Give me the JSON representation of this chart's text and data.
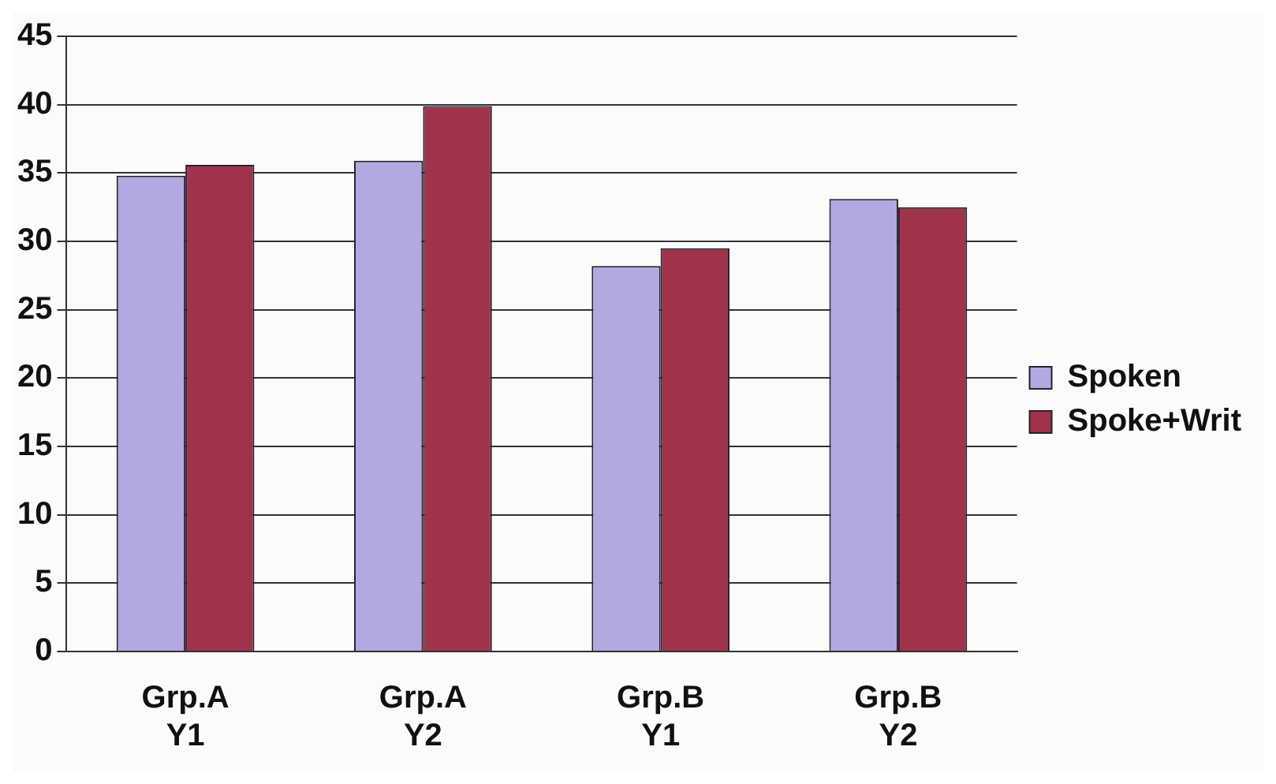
{
  "chart_data": {
    "type": "bar",
    "categories": [
      "Grp.A Y1",
      "Grp.A Y2",
      "Grp.B Y1",
      "Grp.B Y2"
    ],
    "series": [
      {
        "name": "Spoken",
        "color": "#b3a8e0",
        "values": [
          34.8,
          35.9,
          28.2,
          33.1
        ]
      },
      {
        "name": "Spoke+Writ",
        "color": "#a0334a",
        "values": [
          35.6,
          39.9,
          29.5,
          32.5
        ]
      }
    ],
    "ylim": [
      0,
      45
    ],
    "yticks": [
      0,
      5,
      10,
      15,
      20,
      25,
      30,
      35,
      40,
      45
    ],
    "grid": "y",
    "legend": "right"
  }
}
